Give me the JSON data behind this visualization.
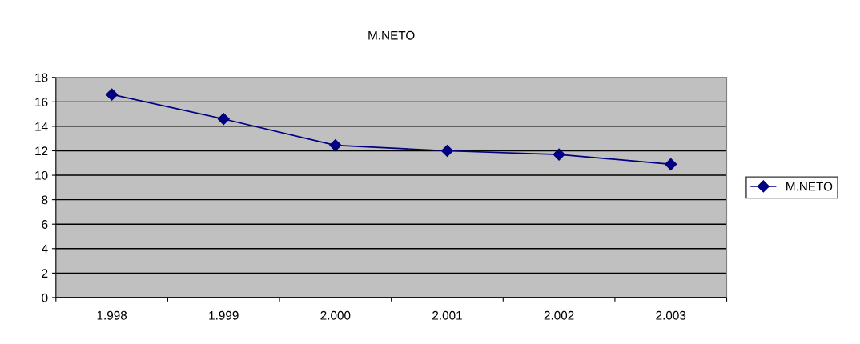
{
  "chart_data": {
    "type": "line",
    "title": "M.NETO",
    "categories": [
      "1.998",
      "1.999",
      "2.000",
      "2.001",
      "2.002",
      "2.003"
    ],
    "series": [
      {
        "name": "M.NETO",
        "color": "#000080",
        "values": [
          16.6,
          14.6,
          12.45,
          12.0,
          11.7,
          10.9
        ]
      }
    ],
    "ylim": [
      0,
      18
    ],
    "yticks": [
      0,
      2,
      4,
      6,
      8,
      10,
      12,
      14,
      16,
      18
    ],
    "grid": "y",
    "legend": "right",
    "marker": "diamond",
    "line_style": "solid"
  }
}
